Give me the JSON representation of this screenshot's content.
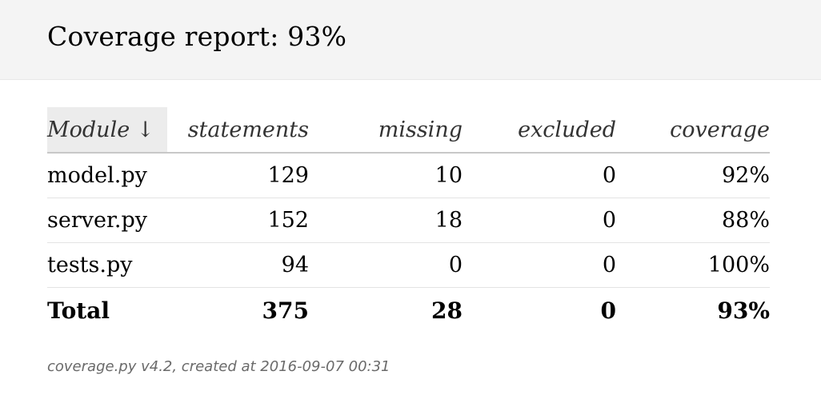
{
  "header": {
    "title": "Coverage report: 93%"
  },
  "table": {
    "columns": {
      "module": "Module",
      "module_sort_indicator": "↓",
      "statements": "statements",
      "missing": "missing",
      "excluded": "excluded",
      "coverage": "coverage"
    },
    "rows": [
      {
        "module": "model.py",
        "statements": "129",
        "missing": "10",
        "excluded": "0",
        "coverage": "92%"
      },
      {
        "module": "server.py",
        "statements": "152",
        "missing": "18",
        "excluded": "0",
        "coverage": "88%"
      },
      {
        "module": "tests.py",
        "statements": "94",
        "missing": "0",
        "excluded": "0",
        "coverage": "100%"
      }
    ],
    "total": {
      "module": "Total",
      "statements": "375",
      "missing": "28",
      "excluded": "0",
      "coverage": "93%"
    }
  },
  "footer": {
    "text": "coverage.py v4.2, created at 2016-09-07 00:31"
  },
  "colors": {
    "header_bg": "#f4f4f4",
    "sorted_column_bg": "#ececec",
    "footer_text": "#6a6a6a"
  }
}
